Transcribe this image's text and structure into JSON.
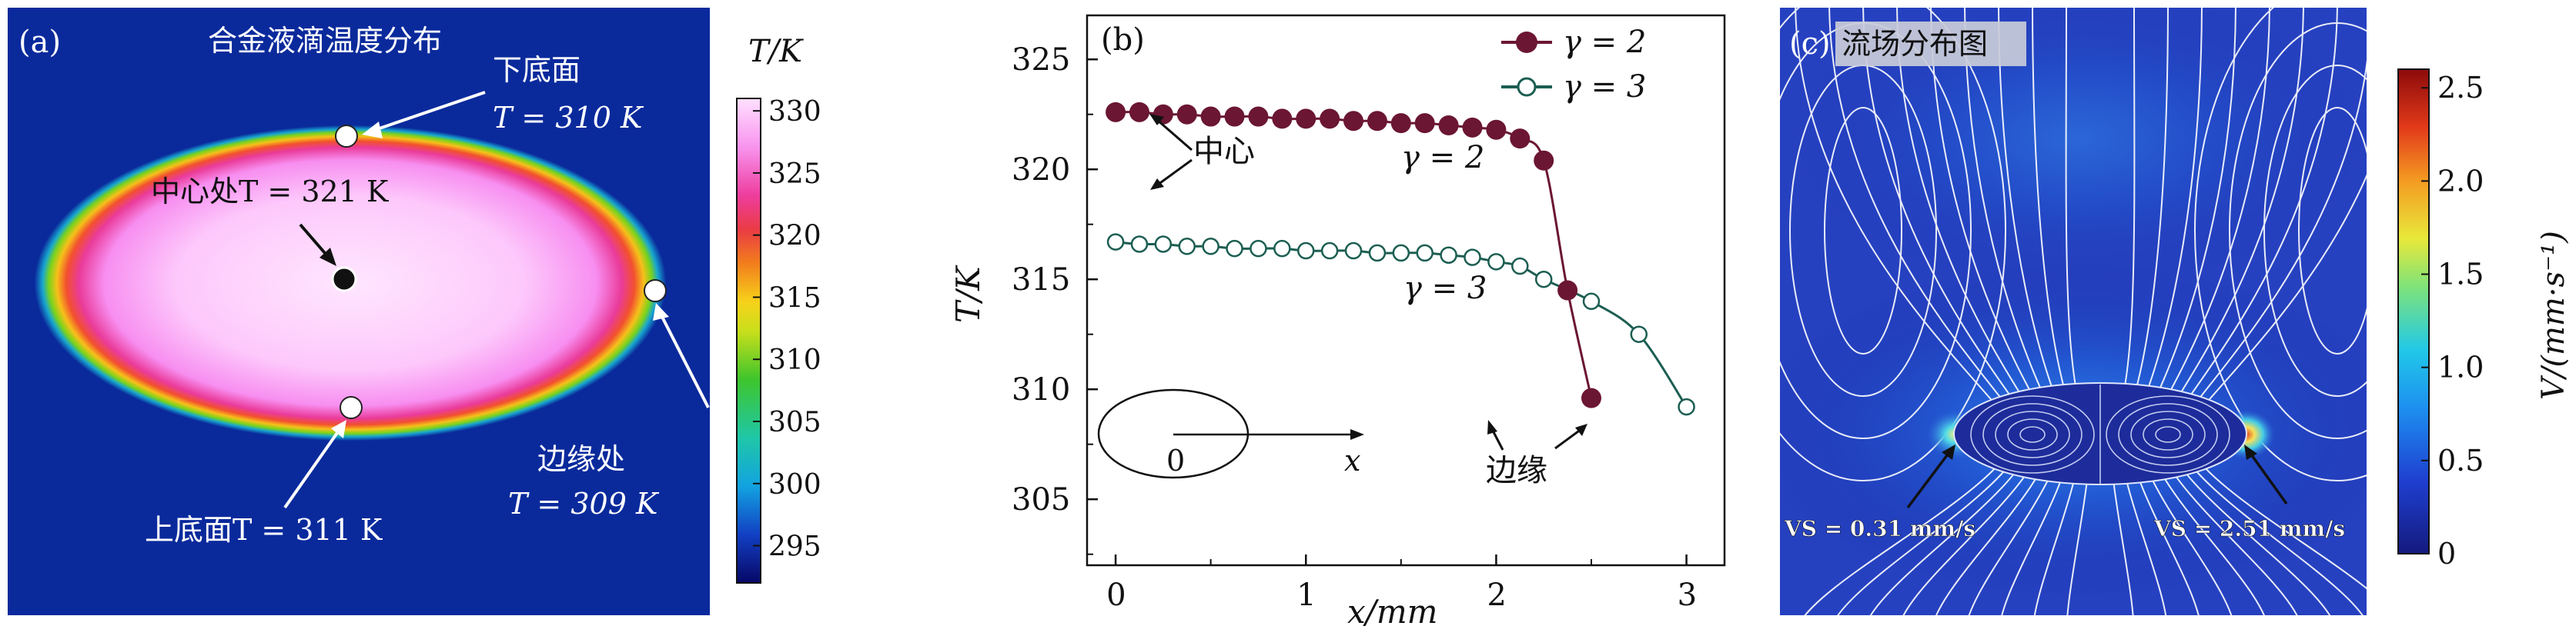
{
  "panel_a": {
    "label": "(a)",
    "title": "合金液滴温度分布",
    "annotations": {
      "bottom_face": "下底面",
      "bottom_face_T": "T = 310 K",
      "center": "中心处T = 321 K",
      "edge": "边缘处",
      "edge_T": "T = 309 K",
      "top_face": "上底面T = 311 K"
    },
    "colorbar_title": "T/K",
    "colorbar_ticks": [
      "330",
      "325",
      "320",
      "315",
      "310",
      "305",
      "300",
      "295"
    ],
    "colorbar_range": [
      292,
      331
    ]
  },
  "panel_b": {
    "label": "(b)",
    "legend": [
      "γ = 2",
      "γ = 3"
    ],
    "annotations": {
      "center": "中心",
      "edge": "边缘",
      "gamma2": "γ = 2",
      "gamma3": "γ = 3",
      "inset_origin": "0",
      "inset_x": "x"
    },
    "colors": {
      "gamma2": "#6b1633",
      "gamma3": "#1c5e52"
    }
  },
  "panel_c": {
    "label": "(c)",
    "title": "流场分布图",
    "annotations": {
      "vs_left": "VS = 0.31 mm/s",
      "vs_right": "VS = 2.51 mm/s"
    },
    "colorbar_title": "V/(mm·s⁻¹)",
    "colorbar_ticks": [
      "2.5",
      "2.0",
      "1.5",
      "1.0",
      "0.5",
      "0"
    ],
    "colorbar_range": [
      0,
      2.6
    ]
  },
  "chart_data": [
    {
      "type": "heatmap",
      "title": "合金液滴温度分布",
      "colorbar_label": "T/K",
      "colorbar_ticks": [
        330,
        325,
        320,
        315,
        310,
        305,
        300,
        295
      ],
      "points": [
        {
          "label": "下底面",
          "T": 310
        },
        {
          "label": "中心处",
          "T": 321
        },
        {
          "label": "边缘处",
          "T": 309
        },
        {
          "label": "上底面",
          "T": 311
        }
      ]
    },
    {
      "type": "line",
      "xlabel": "x/mm",
      "ylabel": "T/K",
      "xlim": [
        -0.15,
        3.2
      ],
      "ylim": [
        302,
        327
      ],
      "xticks": [
        0,
        1,
        2,
        3
      ],
      "yticks": [
        305,
        310,
        315,
        320,
        325
      ],
      "legend_position": "top-right",
      "series": [
        {
          "name": "γ = 2",
          "x": [
            0,
            0.125,
            0.25,
            0.375,
            0.5,
            0.625,
            0.75,
            0.875,
            1.0,
            1.125,
            1.25,
            1.375,
            1.5,
            1.625,
            1.75,
            1.875,
            2.0,
            2.125,
            2.25,
            2.375,
            2.5
          ],
          "y": [
            322.6,
            322.6,
            322.5,
            322.5,
            322.4,
            322.4,
            322.4,
            322.3,
            322.3,
            322.3,
            322.2,
            322.2,
            322.1,
            322.1,
            322.0,
            321.9,
            321.8,
            321.4,
            320.4,
            314.5,
            309.6
          ]
        },
        {
          "name": "γ = 3",
          "x": [
            0,
            0.125,
            0.25,
            0.375,
            0.5,
            0.625,
            0.75,
            0.875,
            1.0,
            1.125,
            1.25,
            1.375,
            1.5,
            1.625,
            1.75,
            1.875,
            2.0,
            2.125,
            2.25,
            2.5,
            2.75,
            3.0
          ],
          "y": [
            316.7,
            316.6,
            316.6,
            316.5,
            316.5,
            316.4,
            316.4,
            316.4,
            316.3,
            316.3,
            316.3,
            316.2,
            316.2,
            316.2,
            316.1,
            316.0,
            315.8,
            315.6,
            315.0,
            314.0,
            312.5,
            309.2
          ]
        }
      ]
    },
    {
      "type": "heatmap",
      "title": "流场分布图",
      "colorbar_label": "V/(mm·s⁻¹)",
      "colorbar_ticks": [
        2.5,
        2.0,
        1.5,
        1.0,
        0.5,
        0
      ],
      "points": [
        {
          "label": "VS = 0.31 mm/s",
          "V": 0.31
        },
        {
          "label": "VS = 2.51 mm/s",
          "V": 2.51
        }
      ]
    }
  ]
}
